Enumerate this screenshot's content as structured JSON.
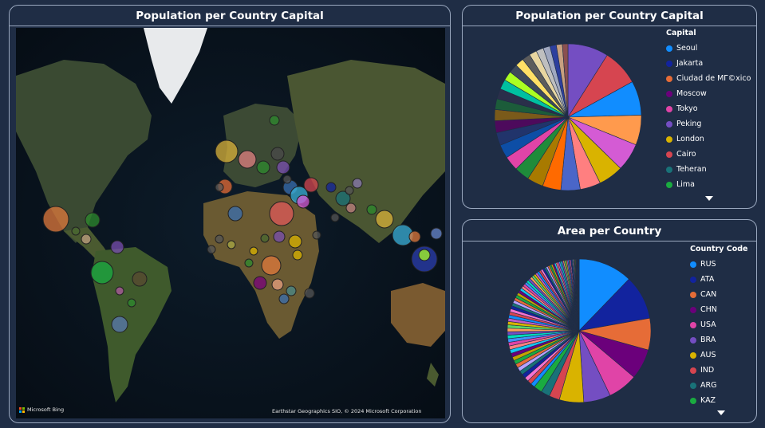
{
  "map_panel": {
    "title": "Population per Country Capital",
    "bing_label": "Microsoft Bing",
    "attribution": "Earthstar Geographics SIO, © 2024 Microsoft Corporation"
  },
  "pie_panel": {
    "title": "Population per Country Capital",
    "legend_title": "Capital"
  },
  "area_panel": {
    "title": "Area per Country",
    "legend_title": "Country Code"
  },
  "chart_data": [
    {
      "type": "map-bubble",
      "title": "Population per Country Capital",
      "bubble_colors": [
        "#e07a3c",
        "#2e8b2e",
        "#3a6fb0",
        "#d9b23a",
        "#e05a5a",
        "#3bb0d8",
        "#2b3fb0",
        "#7a4fb0",
        "#8a7ab0",
        "#5a5a5a"
      ]
    },
    {
      "type": "pie",
      "title": "Population per Country Capital",
      "legend_title": "Capital",
      "legend": [
        {
          "label": "Seoul",
          "color": "#118dff"
        },
        {
          "label": "Jakarta",
          "color": "#12239e"
        },
        {
          "label": "Ciudad de MΓ©xico",
          "color": "#e66c37"
        },
        {
          "label": "Moscow",
          "color": "#6b007b"
        },
        {
          "label": "Tokyo",
          "color": "#e044a7"
        },
        {
          "label": "Peking",
          "color": "#744ec2"
        },
        {
          "label": "London",
          "color": "#d9b300"
        },
        {
          "label": "Cairo",
          "color": "#d64550"
        },
        {
          "label": "Teheran",
          "color": "#197278"
        },
        {
          "label": "Lima",
          "color": "#1aab40"
        }
      ],
      "slices": [
        {
          "value": 9.5,
          "color": "#744ec2"
        },
        {
          "value": 8.5,
          "color": "#d64550"
        },
        {
          "value": 8.0,
          "color": "#118dff"
        },
        {
          "value": 7.0,
          "color": "#ff9a4d"
        },
        {
          "value": 6.5,
          "color": "#d45bd4"
        },
        {
          "value": 5.8,
          "color": "#d9b300"
        },
        {
          "value": 4.8,
          "color": "#ff7f80"
        },
        {
          "value": 4.5,
          "color": "#4a66c8"
        },
        {
          "value": 4.3,
          "color": "#ff6a00"
        },
        {
          "value": 3.8,
          "color": "#a87a00"
        },
        {
          "value": 3.5,
          "color": "#1f8b3a"
        },
        {
          "value": 3.4,
          "color": "#e044a7"
        },
        {
          "value": 3.2,
          "color": "#0d4ea6"
        },
        {
          "value": 3.0,
          "color": "#21346b"
        },
        {
          "value": 2.8,
          "color": "#4d0a5c"
        },
        {
          "value": 2.6,
          "color": "#7a5a1a"
        },
        {
          "value": 2.5,
          "color": "#1c5c3a"
        },
        {
          "value": 2.4,
          "color": "#2a2f4a"
        },
        {
          "value": 2.3,
          "color": "#00c0a0"
        },
        {
          "value": 2.2,
          "color": "#aaff22"
        },
        {
          "value": 2.1,
          "color": "#3d4a5c"
        },
        {
          "value": 2.0,
          "color": "#ffe066"
        },
        {
          "value": 1.9,
          "color": "#5c5c5c"
        },
        {
          "value": 1.8,
          "color": "#e8d6a0"
        },
        {
          "value": 1.7,
          "color": "#bfbfbf"
        },
        {
          "value": 1.6,
          "color": "#a0a8c0"
        },
        {
          "value": 1.5,
          "color": "#2d3f9e"
        },
        {
          "value": 1.4,
          "color": "#c8a080"
        },
        {
          "value": 1.3,
          "color": "#8a5050"
        }
      ]
    },
    {
      "type": "pie",
      "title": "Area per Country",
      "legend_title": "Country Code",
      "legend": [
        {
          "label": "RUS",
          "color": "#118dff"
        },
        {
          "label": "ATA",
          "color": "#12239e"
        },
        {
          "label": "CAN",
          "color": "#e66c37"
        },
        {
          "label": "CHN",
          "color": "#6b007b"
        },
        {
          "label": "USA",
          "color": "#e044a7"
        },
        {
          "label": "BRA",
          "color": "#744ec2"
        },
        {
          "label": "AUS",
          "color": "#d9b300"
        },
        {
          "label": "IND",
          "color": "#d64550"
        },
        {
          "label": "ARG",
          "color": "#197278"
        },
        {
          "label": "KAZ",
          "color": "#1aab40"
        }
      ],
      "slices": [
        {
          "value": 17.1,
          "color": "#118dff"
        },
        {
          "value": 14.0,
          "color": "#12239e"
        },
        {
          "value": 10.0,
          "color": "#e66c37"
        },
        {
          "value": 9.6,
          "color": "#6b007b"
        },
        {
          "value": 9.4,
          "color": "#e044a7"
        },
        {
          "value": 8.5,
          "color": "#744ec2"
        },
        {
          "value": 7.7,
          "color": "#d9b300"
        },
        {
          "value": 3.3,
          "color": "#d64550"
        },
        {
          "value": 2.8,
          "color": "#197278"
        },
        {
          "value": 2.7,
          "color": "#1aab40"
        }
      ],
      "other_slices_count": 80,
      "other_slices_total": 55
    }
  ]
}
